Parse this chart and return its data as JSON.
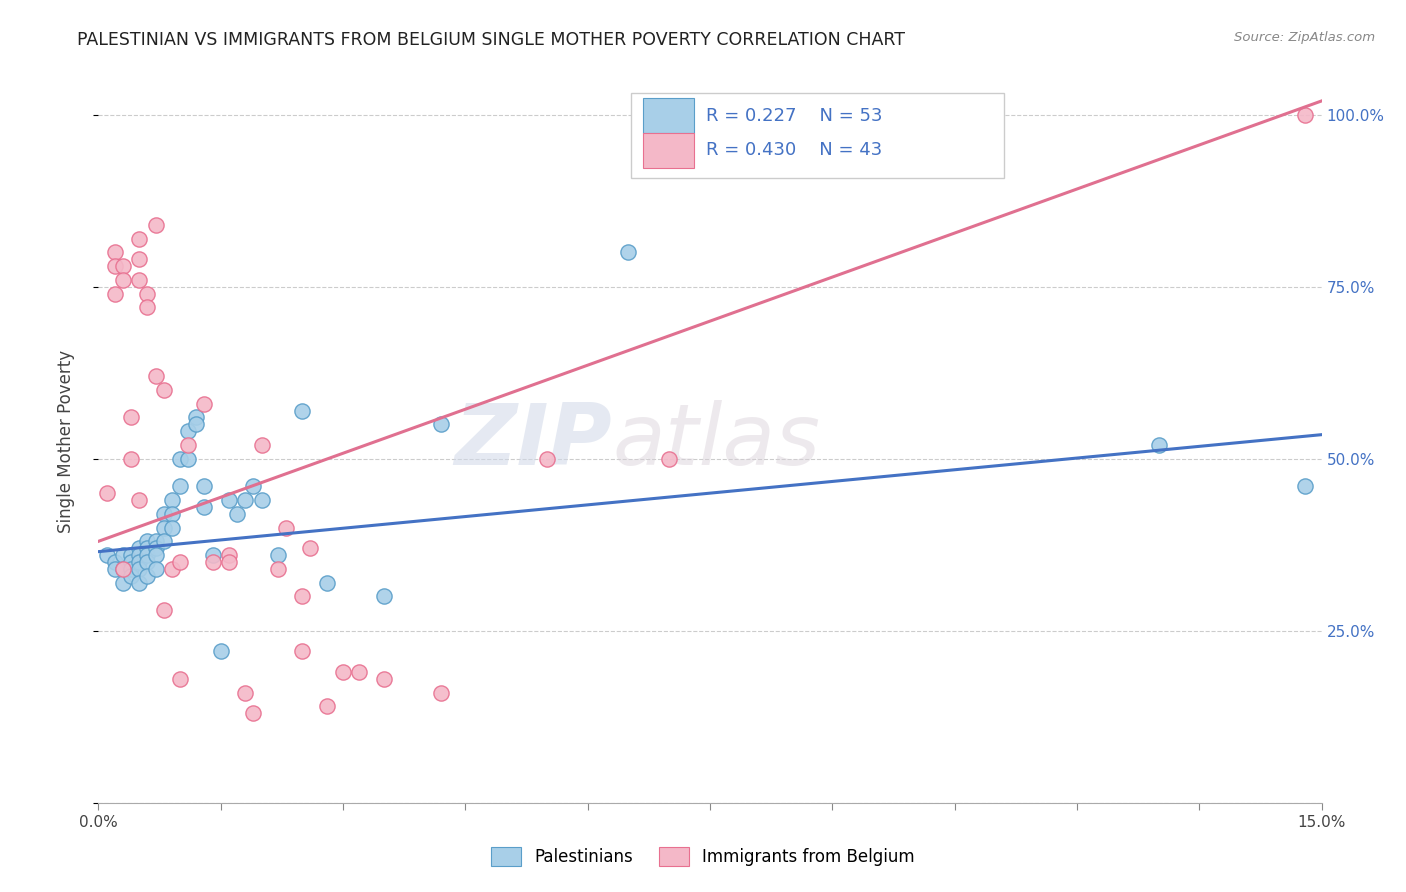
{
  "title": "PALESTINIAN VS IMMIGRANTS FROM BELGIUM SINGLE MOTHER POVERTY CORRELATION CHART",
  "source": "Source: ZipAtlas.com",
  "ylabel": "Single Mother Poverty",
  "xlim": [
    0.0,
    0.15
  ],
  "ylim": [
    0.0,
    1.05
  ],
  "xtick_pos": [
    0.0,
    0.015,
    0.03,
    0.045,
    0.06,
    0.075,
    0.09,
    0.105,
    0.12,
    0.135,
    0.15
  ],
  "ytick_pos": [
    0.0,
    0.25,
    0.5,
    0.75,
    1.0
  ],
  "ytick_labels_right": [
    "",
    "25.0%",
    "50.0%",
    "75.0%",
    "100.0%"
  ],
  "legend_labels": [
    "Palestinians",
    "Immigrants from Belgium"
  ],
  "blue_color": "#a8cfe8",
  "pink_color": "#f4b8c8",
  "blue_edge_color": "#5a9ec9",
  "pink_edge_color": "#e87090",
  "blue_line_color": "#4472c4",
  "pink_line_color": "#e07090",
  "watermark_zip": "ZIP",
  "watermark_atlas": "atlas",
  "blue_scatter_x": [
    0.001,
    0.002,
    0.002,
    0.003,
    0.003,
    0.003,
    0.004,
    0.004,
    0.004,
    0.004,
    0.005,
    0.005,
    0.005,
    0.005,
    0.005,
    0.006,
    0.006,
    0.006,
    0.006,
    0.006,
    0.007,
    0.007,
    0.007,
    0.007,
    0.008,
    0.008,
    0.008,
    0.009,
    0.009,
    0.009,
    0.01,
    0.01,
    0.011,
    0.011,
    0.012,
    0.012,
    0.013,
    0.013,
    0.014,
    0.015,
    0.016,
    0.017,
    0.018,
    0.019,
    0.02,
    0.022,
    0.025,
    0.028,
    0.035,
    0.042,
    0.065,
    0.13,
    0.148
  ],
  "blue_scatter_y": [
    0.36,
    0.35,
    0.34,
    0.36,
    0.34,
    0.32,
    0.36,
    0.35,
    0.34,
    0.33,
    0.37,
    0.36,
    0.35,
    0.34,
    0.32,
    0.38,
    0.37,
    0.36,
    0.35,
    0.33,
    0.38,
    0.37,
    0.36,
    0.34,
    0.42,
    0.4,
    0.38,
    0.44,
    0.42,
    0.4,
    0.5,
    0.46,
    0.54,
    0.5,
    0.56,
    0.55,
    0.46,
    0.43,
    0.36,
    0.22,
    0.44,
    0.42,
    0.44,
    0.46,
    0.44,
    0.36,
    0.57,
    0.32,
    0.3,
    0.55,
    0.8,
    0.52,
    0.46
  ],
  "pink_scatter_x": [
    0.001,
    0.002,
    0.002,
    0.002,
    0.003,
    0.003,
    0.003,
    0.004,
    0.004,
    0.005,
    0.005,
    0.005,
    0.005,
    0.006,
    0.006,
    0.007,
    0.007,
    0.008,
    0.008,
    0.009,
    0.01,
    0.01,
    0.011,
    0.013,
    0.014,
    0.016,
    0.016,
    0.018,
    0.019,
    0.02,
    0.022,
    0.023,
    0.025,
    0.025,
    0.026,
    0.028,
    0.03,
    0.032,
    0.035,
    0.042,
    0.055,
    0.07,
    0.148
  ],
  "pink_scatter_y": [
    0.45,
    0.8,
    0.78,
    0.74,
    0.78,
    0.76,
    0.34,
    0.56,
    0.5,
    0.82,
    0.79,
    0.76,
    0.44,
    0.74,
    0.72,
    0.84,
    0.62,
    0.6,
    0.28,
    0.34,
    0.35,
    0.18,
    0.52,
    0.58,
    0.35,
    0.36,
    0.35,
    0.16,
    0.13,
    0.52,
    0.34,
    0.4,
    0.3,
    0.22,
    0.37,
    0.14,
    0.19,
    0.19,
    0.18,
    0.16,
    0.5,
    0.5,
    1.0
  ],
  "blue_line_x": [
    0.0,
    0.15
  ],
  "blue_line_y": [
    0.365,
    0.535
  ],
  "pink_line_x": [
    0.0,
    0.15
  ],
  "pink_line_y": [
    0.38,
    1.02
  ]
}
